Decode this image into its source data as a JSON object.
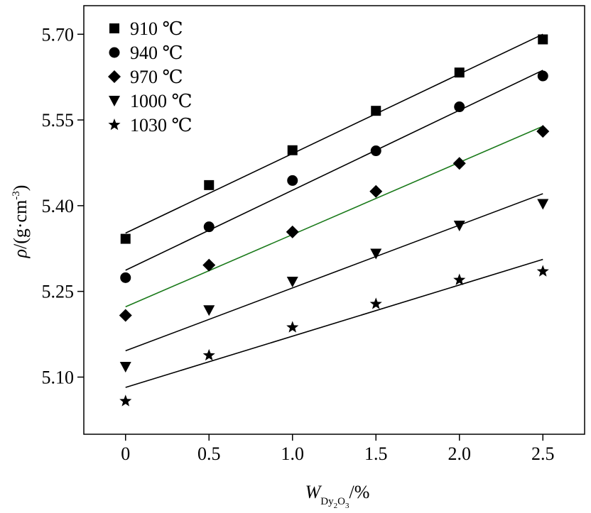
{
  "chart_data": {
    "type": "scatter",
    "xlabel": {
      "main": "W",
      "sub_prefix": "Dy",
      "sub_2": "2",
      "sub_mid": "O",
      "sub_3": "3",
      "suffix": "/%"
    },
    "ylabel": {
      "prefix": "ρ",
      "suffix": "/(g·cm",
      "sup": "-3",
      "close": ")"
    },
    "xlim": [
      -0.25,
      2.75
    ],
    "ylim": [
      5.0,
      5.75
    ],
    "xticks": [
      0,
      0.5,
      1.0,
      1.5,
      2.0,
      2.5
    ],
    "xtick_labels": [
      "0",
      "0.5",
      "1.0",
      "1.5",
      "2.0",
      "2.5"
    ],
    "yticks": [
      5.1,
      5.25,
      5.4,
      5.55,
      5.7
    ],
    "ytick_labels": [
      "5.10",
      "5.25",
      "5.40",
      "5.55",
      "5.70"
    ],
    "legend_position": "top-left",
    "x": [
      0,
      0.5,
      1.0,
      1.5,
      2.0,
      2.5
    ],
    "series": [
      {
        "name": "910 ℃",
        "marker": "square",
        "line_color": "#000000",
        "values": [
          5.342,
          5.436,
          5.497,
          5.566,
          5.633,
          5.691
        ],
        "fit": [
          5.352,
          5.7
        ]
      },
      {
        "name": "940 ℃",
        "marker": "circle",
        "line_color": "#000000",
        "values": [
          5.274,
          5.363,
          5.444,
          5.496,
          5.573,
          5.627
        ],
        "fit": [
          5.287,
          5.637
        ]
      },
      {
        "name": "970 ℃",
        "marker": "diamond",
        "line_color": "#1a7a1a",
        "values": [
          5.208,
          5.296,
          5.354,
          5.425,
          5.474,
          5.53
        ],
        "fit": [
          5.223,
          5.539
        ]
      },
      {
        "name": "1000 ℃",
        "marker": "triangle-down",
        "line_color": "#000000",
        "values": [
          5.118,
          5.217,
          5.267,
          5.316,
          5.365,
          5.403
        ],
        "fit": [
          5.146,
          5.421
        ]
      },
      {
        "name": "1030 ℃",
        "marker": "star",
        "line_color": "#000000",
        "values": [
          5.058,
          5.138,
          5.187,
          5.228,
          5.27,
          5.285
        ],
        "fit": [
          5.082,
          5.306
        ]
      }
    ]
  }
}
